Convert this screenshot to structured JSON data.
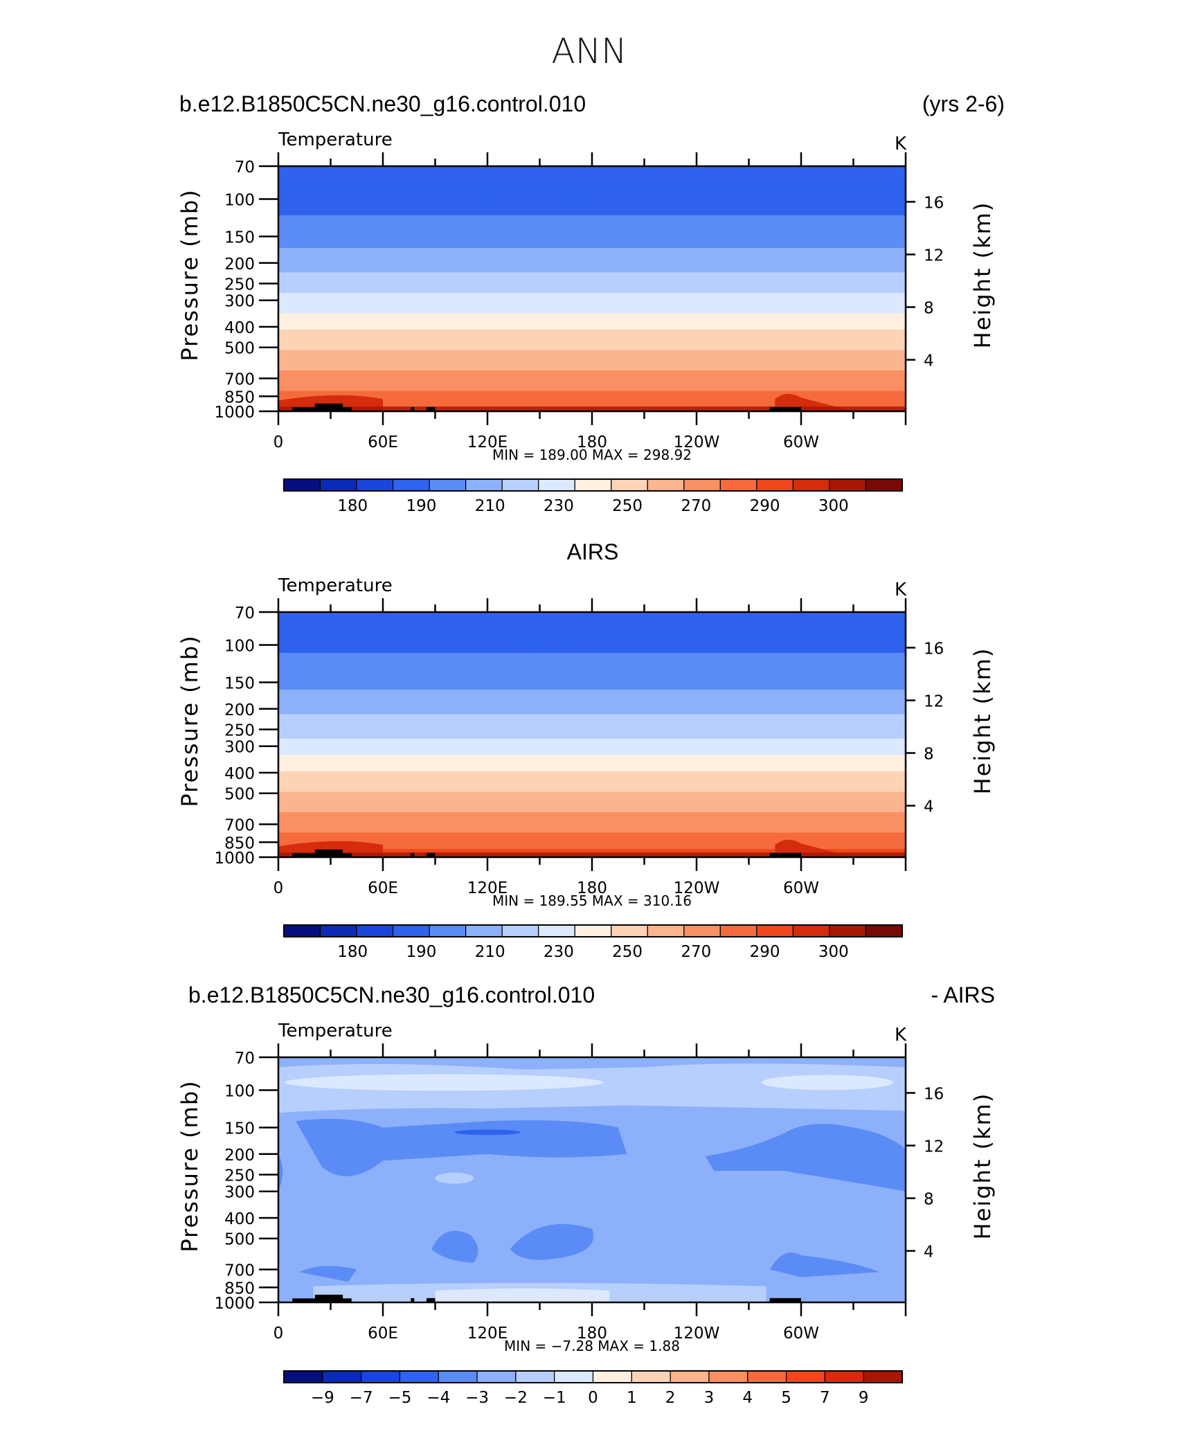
{
  "figure": {
    "title": "ANN",
    "panel1_case": "b.e12.B1850C5CN.ne30_g16.control.010",
    "panel1_years": "(yrs 2-6)",
    "panel2_title": "AIRS",
    "panel3_case": "b.e12.B1850C5CN.ne30_g16.control.010",
    "panel3_suffix": "- AIRS"
  },
  "chart_data": [
    {
      "type": "heatmap",
      "title": "Temperature",
      "units": "K",
      "ylabel": "Pressure (mb)",
      "ylabel_right": "Height (km)",
      "x_ticks": [
        "0",
        "60E",
        "120E",
        "180",
        "120W",
        "60W"
      ],
      "y_ticks": [
        "70",
        "100",
        "150",
        "200",
        "250",
        "300",
        "400",
        "500",
        "700",
        "850",
        "1000"
      ],
      "y_right_ticks": [
        "16",
        "12",
        "8",
        "4"
      ],
      "stats": "MIN = 189.00 MAX = 298.92",
      "min": 189.0,
      "max": 298.92,
      "colorbar_labels": [
        "180",
        "190",
        "210",
        "230",
        "250",
        "270",
        "290",
        "300"
      ],
      "colorbar_colors": [
        "#050e80",
        "#0a2bb5",
        "#1a45dd",
        "#2f63ee",
        "#5b8cf5",
        "#8db0fa",
        "#b7cffc",
        "#dbe8fe",
        "#fff0e0",
        "#fdd3b6",
        "#fcb48e",
        "#fa8f63",
        "#f56b3b",
        "#f0481a",
        "#d42c0c",
        "#a81705",
        "#7a0804"
      ],
      "rows_p": [
        70,
        100,
        150,
        200,
        250,
        300,
        400,
        500,
        700,
        850,
        1000
      ],
      "rows_t": [
        194,
        196,
        205,
        215,
        224,
        233,
        248,
        258,
        274,
        284,
        290
      ]
    },
    {
      "type": "heatmap",
      "title": "Temperature",
      "units": "K",
      "ylabel": "Pressure (mb)",
      "ylabel_right": "Height (km)",
      "x_ticks": [
        "0",
        "60E",
        "120E",
        "180",
        "120W",
        "60W"
      ],
      "y_ticks": [
        "70",
        "100",
        "150",
        "200",
        "250",
        "300",
        "400",
        "500",
        "700",
        "850",
        "1000"
      ],
      "y_right_ticks": [
        "16",
        "12",
        "8",
        "4"
      ],
      "stats": "MIN = 189.55 MAX = 310.16",
      "min": 189.55,
      "max": 310.16,
      "colorbar_labels": [
        "180",
        "190",
        "210",
        "230",
        "250",
        "270",
        "290",
        "300"
      ],
      "colorbar_colors": [
        "#050e80",
        "#0a2bb5",
        "#1a45dd",
        "#2f63ee",
        "#5b8cf5",
        "#8db0fa",
        "#b7cffc",
        "#dbe8fe",
        "#fff0e0",
        "#fdd3b6",
        "#fcb48e",
        "#fa8f63",
        "#f56b3b",
        "#f0481a",
        "#d42c0c",
        "#a81705",
        "#7a0804"
      ],
      "rows_p": [
        70,
        100,
        150,
        200,
        250,
        300,
        400,
        500,
        700,
        850,
        1000
      ],
      "rows_t": [
        196,
        198,
        207,
        217,
        226,
        235,
        250,
        260,
        276,
        287,
        294
      ]
    },
    {
      "type": "heatmap",
      "title": "Temperature",
      "units": "K",
      "ylabel": "Pressure (mb)",
      "ylabel_right": "Height (km)",
      "x_ticks": [
        "0",
        "60E",
        "120E",
        "180",
        "120W",
        "60W"
      ],
      "y_ticks": [
        "70",
        "100",
        "150",
        "200",
        "250",
        "300",
        "400",
        "500",
        "700",
        "850",
        "1000"
      ],
      "y_right_ticks": [
        "16",
        "12",
        "8",
        "4"
      ],
      "stats": "MIN = −7.28 MAX = 1.88",
      "min": -7.28,
      "max": 1.88,
      "colorbar_labels": [
        "−9",
        "−7",
        "−5",
        "−4",
        "−3",
        "−2",
        "−1",
        "0",
        "1",
        "2",
        "3",
        "4",
        "5",
        "7",
        "9"
      ],
      "colorbar_colors": [
        "#050e80",
        "#0a2bb5",
        "#1a45dd",
        "#2f63ee",
        "#5b8cf5",
        "#8db0fa",
        "#b7cffc",
        "#dbe8fe",
        "#fff0e0",
        "#fdd3b6",
        "#fcb48e",
        "#fa8f63",
        "#f56b3b",
        "#f0481a",
        "#d42c0c",
        "#a81705"
      ]
    }
  ]
}
